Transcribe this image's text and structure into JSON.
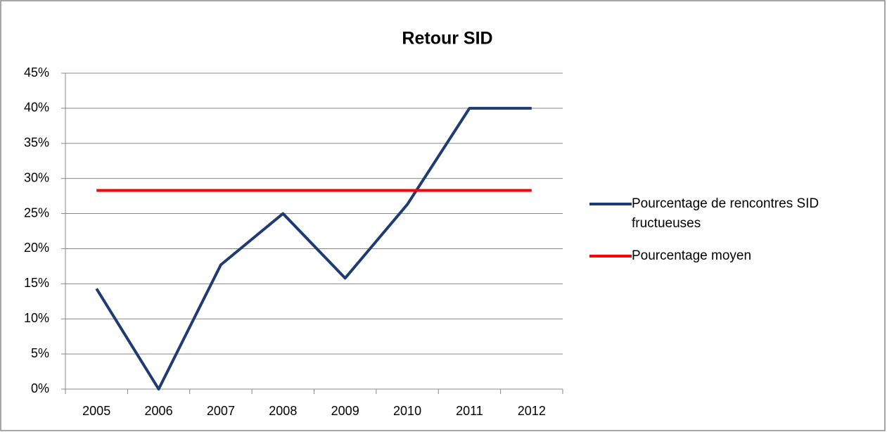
{
  "chart_data": {
    "type": "line",
    "title": "Retour SID",
    "categories": [
      "2005",
      "2006",
      "2007",
      "2008",
      "2009",
      "2010",
      "2011",
      "2012"
    ],
    "series": [
      {
        "name": "Pourcentage de rencontres SID fructueuses",
        "color": "#1f3b73",
        "values": [
          14.3,
          0,
          17.7,
          25,
          15.8,
          26.3,
          40,
          40
        ]
      },
      {
        "name": "Pourcentage moyen",
        "color": "#ff0000",
        "values": [
          28.3,
          28.3,
          28.3,
          28.3,
          28.3,
          28.3,
          28.3,
          28.3
        ]
      }
    ],
    "ylim": [
      0,
      45
    ],
    "yticks": [
      {
        "value": 0,
        "label": "0%"
      },
      {
        "value": 5,
        "label": "5%"
      },
      {
        "value": 10,
        "label": "10%"
      },
      {
        "value": 15,
        "label": "15%"
      },
      {
        "value": 20,
        "label": "20%"
      },
      {
        "value": 25,
        "label": "25%"
      },
      {
        "value": 30,
        "label": "30%"
      },
      {
        "value": 35,
        "label": "35%"
      },
      {
        "value": 40,
        "label": "40%"
      },
      {
        "value": 45,
        "label": "45%"
      }
    ],
    "grid": true,
    "legend": "right"
  }
}
